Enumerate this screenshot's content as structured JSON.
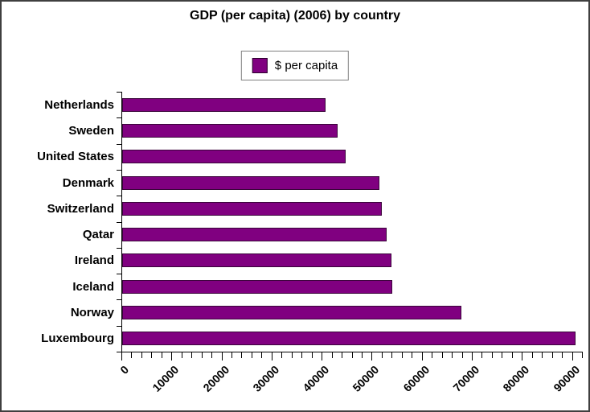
{
  "title": "GDP (per capita) (2006) by country",
  "legend": {
    "label": "$ per capita"
  },
  "colors": {
    "bar_fill": "#800080",
    "bar_border": "#3a053a",
    "axis": "#000000",
    "text": "#000000",
    "legend_border": "#7f7f7f",
    "frame_border": "#3f3f3f",
    "background": "#ffffff"
  },
  "chart_data": {
    "type": "bar",
    "orientation": "horizontal",
    "title": "GDP (per capita) (2006) by country",
    "legend_entries": [
      "$ per capita"
    ],
    "legend_position": "top-center",
    "categories": [
      "Netherlands",
      "Sweden",
      "United States",
      "Denmark",
      "Switzerland",
      "Qatar",
      "Ireland",
      "Iceland",
      "Norway",
      "Luxembourg"
    ],
    "series": [
      {
        "name": "$ per capita",
        "values": [
          40700,
          43000,
          44600,
          51400,
          51800,
          52900,
          53800,
          54000,
          67800,
          90600
        ]
      }
    ],
    "xlabel": "",
    "ylabel": "",
    "xlim": [
      0,
      92000
    ],
    "x_major_ticks": [
      0,
      10000,
      20000,
      30000,
      40000,
      50000,
      60000,
      70000,
      80000,
      90000
    ],
    "x_minor_tick_interval": 2000,
    "x_tick_label_rotation": -45,
    "grid": false,
    "bar_color": "#800080"
  }
}
